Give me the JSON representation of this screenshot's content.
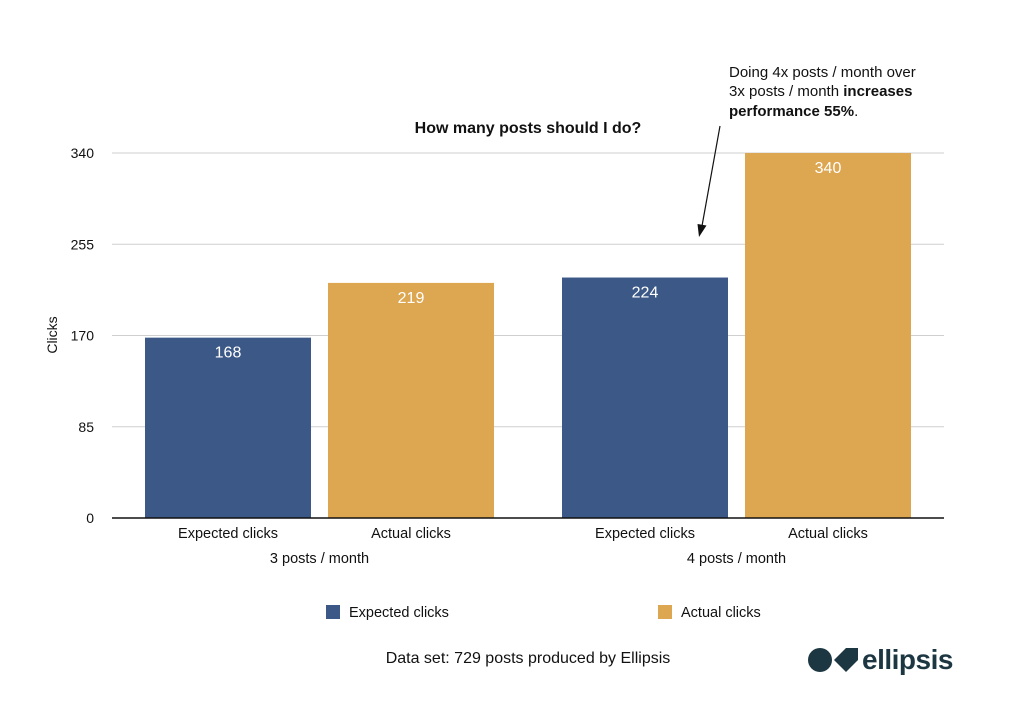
{
  "chart_data": {
    "type": "bar",
    "title": "How many posts should I do?",
    "ylabel": "Clicks",
    "xlabel": "",
    "ylim": [
      0,
      340
    ],
    "yticks": [
      0,
      85,
      170,
      255,
      340
    ],
    "groups": [
      {
        "label": "3 posts / month",
        "bars": [
          {
            "series": "Expected clicks",
            "label": "Expected clicks",
            "value": 168
          },
          {
            "series": "Actual clicks",
            "label": "Actual clicks",
            "value": 219
          }
        ]
      },
      {
        "label": "4 posts / month",
        "bars": [
          {
            "series": "Expected clicks",
            "label": "Expected clicks",
            "value": 224
          },
          {
            "series": "Actual clicks",
            "label": "Actual clicks",
            "value": 340
          }
        ]
      }
    ],
    "series": [
      {
        "name": "Expected clicks",
        "color": "#3b5887",
        "values": [
          168,
          224
        ]
      },
      {
        "name": "Actual clicks",
        "color": "#dda650",
        "values": [
          219,
          340
        ]
      }
    ],
    "legend_position": "bottom",
    "grid": true,
    "annotation": {
      "line1": "Doing 4x posts / month over",
      "line2_prefix": "3x posts / month ",
      "line2_bold": "increases",
      "line3_bold": "performance 55%",
      "line3_suffix": "."
    }
  },
  "footer": {
    "dataset_note": "Data set: 729 posts produced by Ellipsis"
  },
  "brand": {
    "name": "ellipsis",
    "logo_color": "#1c3742"
  }
}
